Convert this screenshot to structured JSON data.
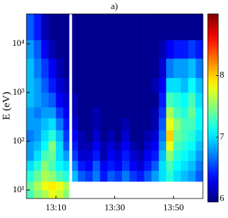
{
  "chart_data": {
    "type": "heatmap",
    "title": "a)",
    "y_label": "E (eV)",
    "y_log": true,
    "colormap": "jet",
    "xlim": [
      780,
      840
    ],
    "xticks": [
      {
        "value": 790,
        "label": "13:10"
      },
      {
        "value": 810,
        "label": "13:30"
      },
      {
        "value": 830,
        "label": "13:50"
      }
    ],
    "ylim": [
      6.7,
      41000
    ],
    "yticks": [
      {
        "value": 10,
        "label": "10¹"
      },
      {
        "value": 100,
        "label": "10²"
      },
      {
        "value": 1000,
        "label": "10³"
      },
      {
        "value": 10000,
        "label": "10⁴"
      }
    ],
    "clim": [
      5.95,
      9.0
    ],
    "cticks": [
      6,
      7,
      8
    ],
    "x_edges": [
      780,
      782.5,
      785,
      787.5,
      790,
      792.5,
      794.5,
      795.5,
      797.5,
      800,
      802.5,
      805,
      807.5,
      810,
      812.5,
      815,
      817.5,
      820,
      822.5,
      825,
      827.5,
      830,
      832.5,
      835,
      837.5,
      840
    ],
    "y_edges": [
      6.7,
      10,
      15,
      25,
      40,
      65,
      100,
      170,
      300,
      500,
      1000,
      2000,
      5000,
      12000,
      41000
    ],
    "values": [
      [
        7.3,
        7.5,
        7.6,
        7.8,
        7.7,
        7.5,
        null,
        null,
        null,
        null,
        null,
        null,
        null,
        null,
        null,
        null,
        null,
        null,
        null,
        null,
        null,
        null,
        null,
        null,
        null
      ],
      [
        7.4,
        7.6,
        7.8,
        7.9,
        7.8,
        7.6,
        null,
        null,
        null,
        null,
        null,
        null,
        null,
        null,
        null,
        null,
        null,
        null,
        null,
        null,
        null,
        null,
        null,
        null,
        null
      ],
      [
        7.2,
        7.4,
        7.6,
        7.5,
        7.3,
        7.2,
        null,
        6.9,
        6.6,
        6.5,
        6.7,
        6.4,
        6.6,
        6.5,
        6.7,
        6.5,
        6.4,
        6.6,
        6.8,
        7.0,
        7.2,
        7.0,
        6.9,
        6.8,
        6.6
      ],
      [
        7.0,
        7.2,
        7.5,
        7.3,
        7.1,
        7.0,
        null,
        6.7,
        6.4,
        6.3,
        6.6,
        6.3,
        6.4,
        6.3,
        6.5,
        6.3,
        6.2,
        6.4,
        6.6,
        7.0,
        7.3,
        7.1,
        7.0,
        6.9,
        6.7
      ],
      [
        6.8,
        7.0,
        7.3,
        7.4,
        7.0,
        6.8,
        null,
        6.5,
        6.2,
        6.2,
        6.4,
        6.1,
        6.3,
        6.2,
        6.4,
        6.2,
        6.1,
        6.3,
        6.4,
        6.9,
        7.5,
        7.2,
        7.1,
        7.0,
        6.8
      ],
      [
        6.8,
        6.9,
        7.1,
        7.5,
        7.0,
        6.6,
        null,
        6.4,
        6.1,
        6.1,
        6.3,
        6.1,
        6.2,
        6.1,
        6.3,
        6.1,
        6.0,
        6.2,
        6.3,
        6.8,
        7.8,
        7.3,
        7.2,
        7.1,
        6.9
      ],
      [
        6.7,
        6.8,
        7.0,
        7.2,
        6.9,
        6.5,
        null,
        6.3,
        6.1,
        6.0,
        6.2,
        6.0,
        6.1,
        6.0,
        6.2,
        6.0,
        6.0,
        6.1,
        6.2,
        6.7,
        8.0,
        7.4,
        7.3,
        7.2,
        7.0
      ],
      [
        6.8,
        6.8,
        6.9,
        7.0,
        6.7,
        6.4,
        null,
        6.2,
        6.0,
        6.0,
        6.1,
        6.0,
        6.0,
        6.0,
        6.1,
        6.0,
        6.0,
        6.0,
        6.1,
        6.6,
        7.8,
        7.5,
        7.3,
        7.3,
        7.1
      ],
      [
        6.8,
        6.7,
        6.8,
        6.8,
        6.5,
        6.3,
        null,
        6.1,
        6.0,
        6.0,
        6.1,
        6.0,
        6.0,
        6.0,
        6.0,
        6.0,
        6.0,
        6.0,
        6.1,
        6.5,
        7.6,
        7.3,
        7.2,
        7.4,
        7.1
      ],
      [
        6.9,
        6.8,
        6.7,
        6.6,
        6.3,
        6.2,
        null,
        6.1,
        6.0,
        6.0,
        6.0,
        6.0,
        6.0,
        6.0,
        6.0,
        6.0,
        6.0,
        6.0,
        6.0,
        6.4,
        7.3,
        7.2,
        7.1,
        7.3,
        7.0
      ],
      [
        6.9,
        6.8,
        6.6,
        6.4,
        6.2,
        6.1,
        null,
        6.0,
        6.0,
        6.0,
        6.0,
        6.0,
        6.0,
        6.0,
        6.0,
        6.0,
        6.0,
        6.0,
        6.1,
        6.3,
        7.0,
        7.0,
        6.9,
        7.1,
        6.9
      ],
      [
        6.9,
        6.7,
        6.5,
        6.3,
        6.1,
        6.0,
        null,
        6.0,
        6.0,
        6.0,
        6.0,
        6.0,
        6.0,
        6.0,
        6.0,
        6.0,
        6.0,
        6.0,
        6.0,
        6.2,
        6.7,
        6.8,
        6.8,
        6.9,
        6.7
      ],
      [
        6.8,
        6.6,
        6.3,
        6.1,
        6.0,
        6.0,
        null,
        6.0,
        6.0,
        6.0,
        6.0,
        6.0,
        6.0,
        6.0,
        6.0,
        6.0,
        6.0,
        6.0,
        6.0,
        6.1,
        6.3,
        6.4,
        6.4,
        6.5,
        6.4
      ],
      [
        6.6,
        6.4,
        6.1,
        6.0,
        6.0,
        6.0,
        null,
        6.0,
        6.0,
        6.0,
        6.0,
        6.0,
        6.0,
        6.0,
        6.0,
        6.0,
        6.0,
        6.0,
        6.0,
        6.0,
        6.0,
        6.0,
        6.0,
        6.0,
        6.0
      ]
    ]
  }
}
